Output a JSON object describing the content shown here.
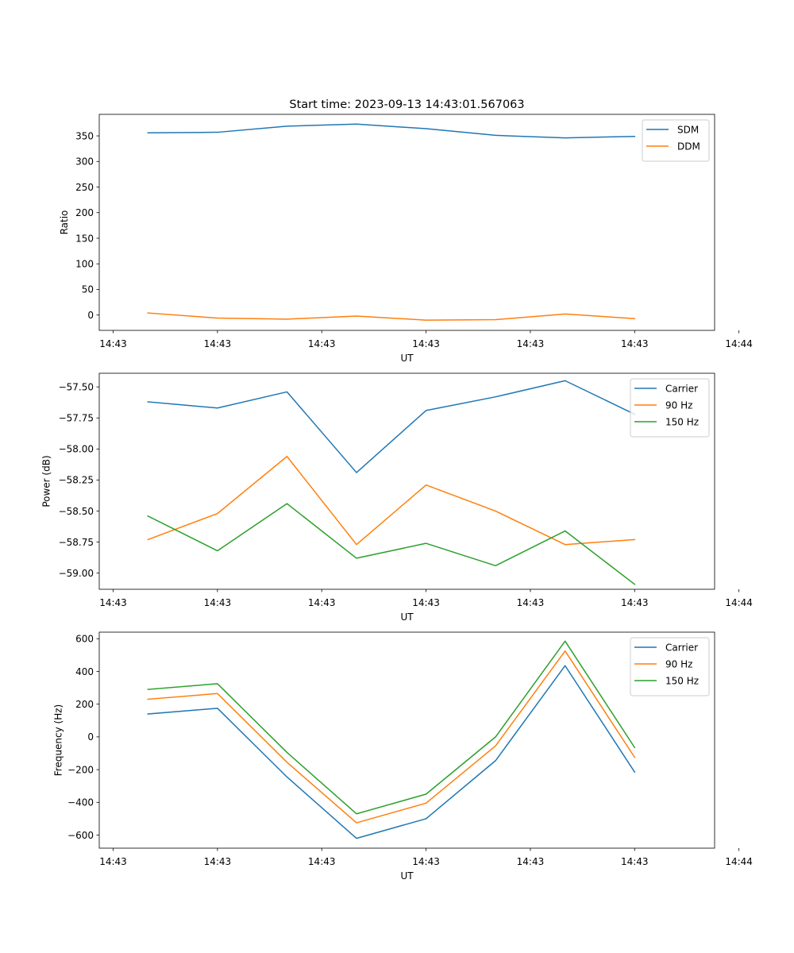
{
  "title": "Start time: 2023-09-13 14:43:01.567063",
  "chart_data": [
    {
      "type": "line",
      "title": "Start time: 2023-09-13 14:43:01.567063",
      "xlabel": "UT",
      "ylabel": "Ratio",
      "x": [
        1,
        2,
        3,
        4,
        5,
        6,
        7,
        8
      ],
      "xlim": [
        0.3,
        9.15
      ],
      "xticks": [
        0.5,
        2,
        3.5,
        5,
        6.5,
        8,
        9.5
      ],
      "xtick_labels": [
        "14:43",
        "14:43",
        "14:43",
        "14:43",
        "14:43",
        "14:43",
        "14:44"
      ],
      "ylim": [
        -30,
        392
      ],
      "yticks": [
        0,
        50,
        100,
        150,
        200,
        250,
        300,
        350
      ],
      "ytick_labels": [
        "0",
        "50",
        "100",
        "150",
        "200",
        "250",
        "300",
        "350"
      ],
      "legend": "top-right",
      "series": [
        {
          "name": "SDM",
          "color": "#1f77b4",
          "values": [
            356,
            357,
            369,
            373,
            364,
            351,
            346,
            349
          ]
        },
        {
          "name": "DDM",
          "color": "#ff7f0e",
          "values": [
            4,
            -6,
            -8,
            -2,
            -10,
            -9,
            2,
            -7
          ]
        }
      ]
    },
    {
      "type": "line",
      "title": "",
      "xlabel": "UT",
      "ylabel": "Power (dB)",
      "x": [
        1,
        2,
        3,
        4,
        5,
        6,
        7,
        8
      ],
      "xlim": [
        0.3,
        9.15
      ],
      "xticks": [
        0.5,
        2,
        3.5,
        5,
        6.5,
        8,
        9.5
      ],
      "xtick_labels": [
        "14:43",
        "14:43",
        "14:43",
        "14:43",
        "14:43",
        "14:43",
        "14:44"
      ],
      "ylim": [
        -59.13,
        -57.39
      ],
      "yticks": [
        -59.0,
        -58.75,
        -58.5,
        -58.25,
        -58.0,
        -57.75,
        -57.5
      ],
      "ytick_labels": [
        "−59.00",
        "−58.75",
        "−58.50",
        "−58.25",
        "−58.00",
        "−57.75",
        "−57.50"
      ],
      "legend": "top-right",
      "series": [
        {
          "name": "Carrier",
          "color": "#1f77b4",
          "values": [
            -57.62,
            -57.67,
            -57.54,
            -58.19,
            -57.69,
            -57.58,
            -57.45,
            -57.72
          ]
        },
        {
          "name": "90 Hz",
          "color": "#ff7f0e",
          "values": [
            -58.73,
            -58.52,
            -58.06,
            -58.77,
            -58.29,
            -58.5,
            -58.77,
            -58.73
          ]
        },
        {
          "name": "150 Hz",
          "color": "#2ca02c",
          "values": [
            -58.54,
            -58.82,
            -58.44,
            -58.88,
            -58.76,
            -58.94,
            -58.66,
            -59.09
          ]
        }
      ]
    },
    {
      "type": "line",
      "title": "",
      "xlabel": "UT",
      "ylabel": "Frequency (Hz)",
      "x": [
        1,
        2,
        3,
        4,
        5,
        6,
        7,
        8
      ],
      "xlim": [
        0.3,
        9.15
      ],
      "xticks": [
        0.5,
        2,
        3.5,
        5,
        6.5,
        8,
        9.5
      ],
      "xtick_labels": [
        "14:43",
        "14:43",
        "14:43",
        "14:43",
        "14:43",
        "14:43",
        "14:44"
      ],
      "ylim": [
        -680,
        640
      ],
      "yticks": [
        -600,
        -400,
        -200,
        0,
        200,
        400,
        600
      ],
      "ytick_labels": [
        "−600",
        "−400",
        "−200",
        "0",
        "200",
        "400",
        "600"
      ],
      "legend": "top-right",
      "series": [
        {
          "name": "Carrier",
          "color": "#1f77b4",
          "values": [
            140,
            175,
            -245,
            -620,
            -500,
            -145,
            435,
            -215
          ]
        },
        {
          "name": "90 Hz",
          "color": "#ff7f0e",
          "values": [
            230,
            265,
            -155,
            -525,
            -405,
            -55,
            525,
            -125
          ]
        },
        {
          "name": "150 Hz",
          "color": "#2ca02c",
          "values": [
            290,
            325,
            -95,
            -470,
            -350,
            0,
            585,
            -65
          ]
        }
      ]
    }
  ]
}
